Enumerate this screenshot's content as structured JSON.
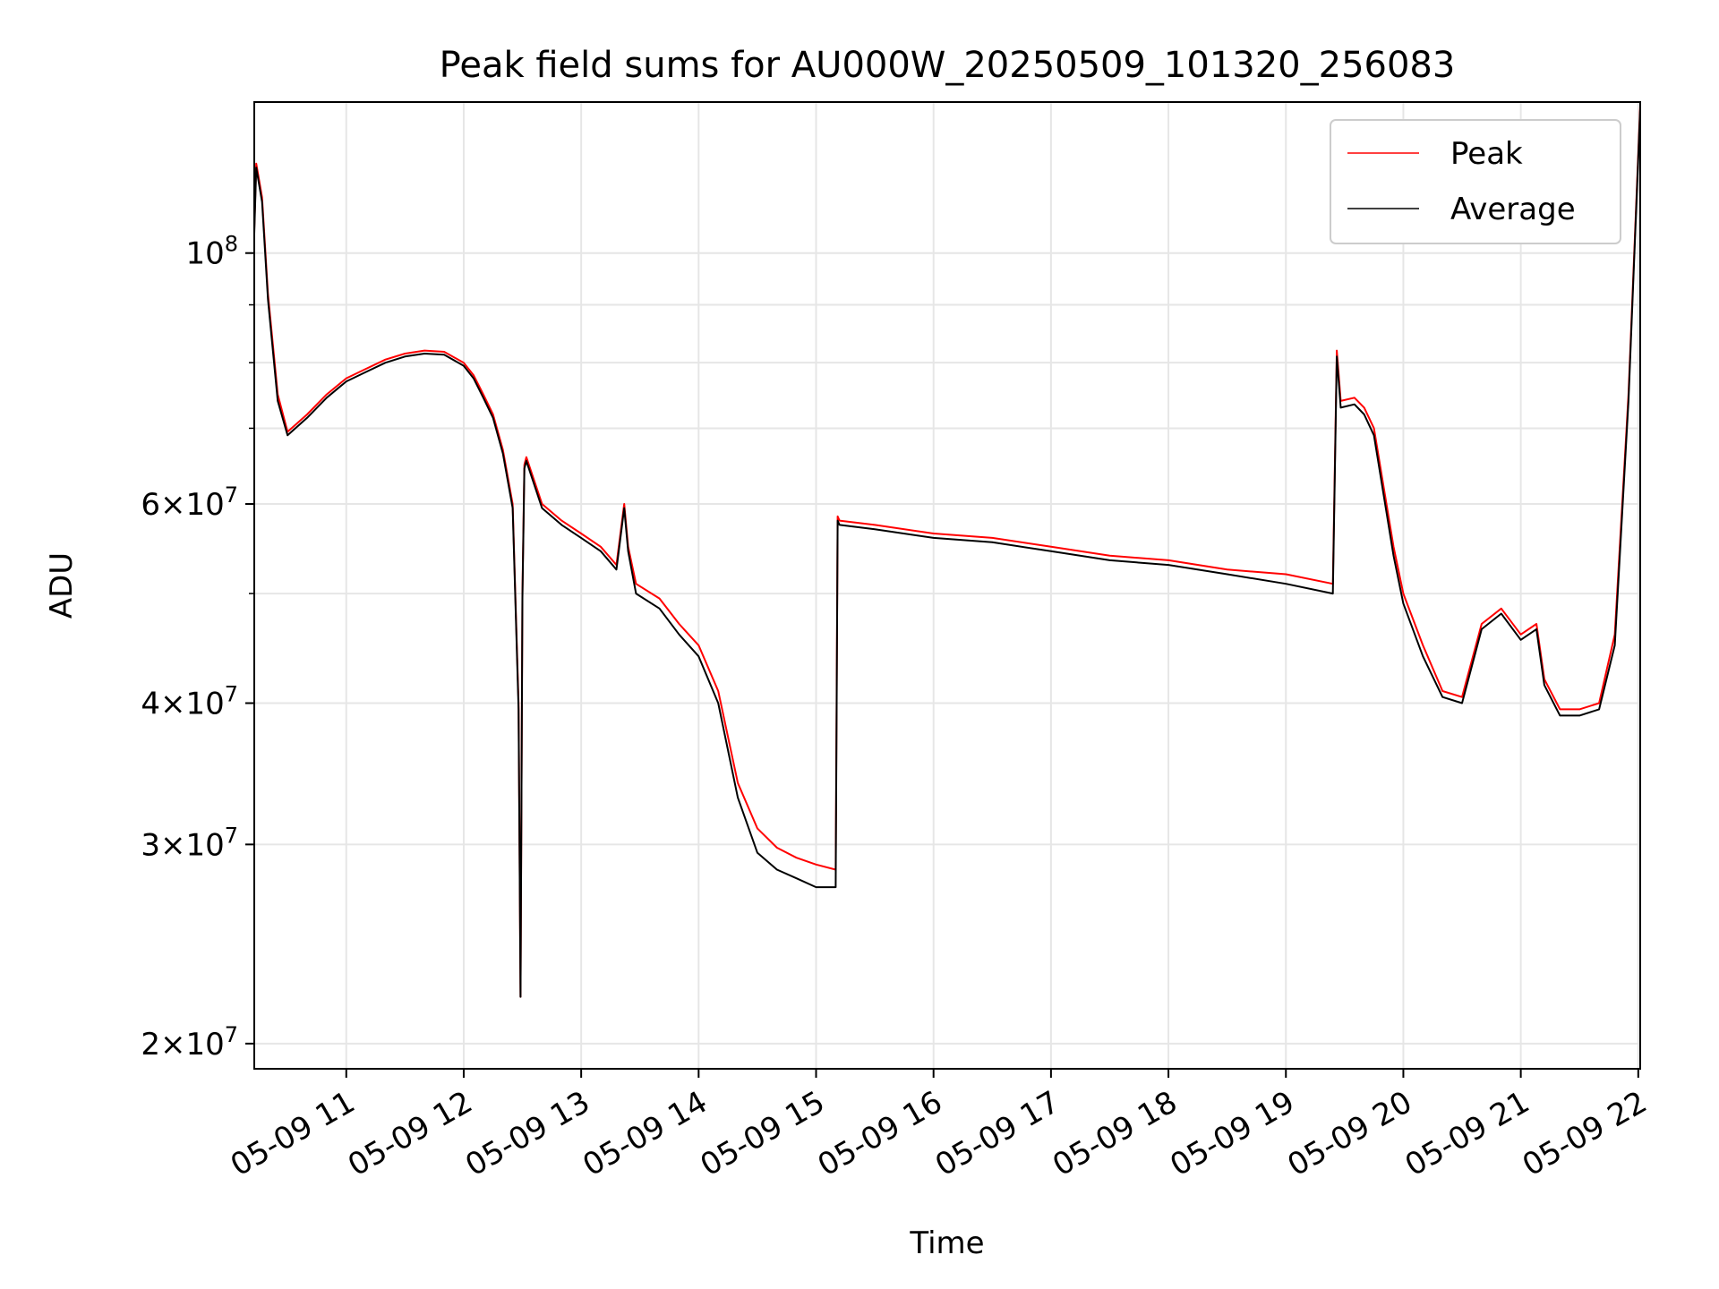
{
  "chart_data": {
    "type": "line",
    "title": "Peak field sums for AU000W_20250509_101320_256083",
    "xlabel": "Time",
    "ylabel": "ADU",
    "yscale": "log",
    "xlim": [
      "2025-05-09 10:13",
      "2025-05-09 22:01"
    ],
    "ylim": [
      19000000,
      136000000
    ],
    "grid": true,
    "legend_position": "upper right",
    "x_ticks": [
      {
        "t": "2025-05-09 11:00",
        "label": "05-09 11"
      },
      {
        "t": "2025-05-09 12:00",
        "label": "05-09 12"
      },
      {
        "t": "2025-05-09 13:00",
        "label": "05-09 13"
      },
      {
        "t": "2025-05-09 14:00",
        "label": "05-09 14"
      },
      {
        "t": "2025-05-09 15:00",
        "label": "05-09 15"
      },
      {
        "t": "2025-05-09 16:00",
        "label": "05-09 16"
      },
      {
        "t": "2025-05-09 17:00",
        "label": "05-09 17"
      },
      {
        "t": "2025-05-09 18:00",
        "label": "05-09 18"
      },
      {
        "t": "2025-05-09 19:00",
        "label": "05-09 19"
      },
      {
        "t": "2025-05-09 20:00",
        "label": "05-09 20"
      },
      {
        "t": "2025-05-09 21:00",
        "label": "05-09 21"
      },
      {
        "t": "2025-05-09 22:00",
        "label": "05-09 22"
      }
    ],
    "y_major_ticks": [
      {
        "value": 20000000,
        "mantissa": "2",
        "exponent": "7"
      },
      {
        "value": 30000000,
        "mantissa": "3",
        "exponent": "7"
      },
      {
        "value": 40000000,
        "mantissa": "4",
        "exponent": "7"
      },
      {
        "value": 60000000,
        "mantissa": "6",
        "exponent": "7"
      },
      {
        "value": 100000000,
        "mantissa": "",
        "exponent": "8"
      }
    ],
    "y_minor_ticks": [
      50000000,
      70000000,
      80000000,
      90000000
    ],
    "series": [
      {
        "name": "Peak",
        "color": "#ff0000",
        "x": [
          "2025-05-09 10:13",
          "2025-05-09 10:14",
          "2025-05-09 10:17",
          "2025-05-09 10:20",
          "2025-05-09 10:25",
          "2025-05-09 10:30",
          "2025-05-09 10:40",
          "2025-05-09 10:50",
          "2025-05-09 11:00",
          "2025-05-09 11:10",
          "2025-05-09 11:20",
          "2025-05-09 11:30",
          "2025-05-09 11:40",
          "2025-05-09 11:50",
          "2025-05-09 12:00",
          "2025-05-09 12:05",
          "2025-05-09 12:10",
          "2025-05-09 12:15",
          "2025-05-09 12:20",
          "2025-05-09 12:25",
          "2025-05-09 12:28",
          "2025-05-09 12:29",
          "2025-05-09 12:30",
          "2025-05-09 12:31",
          "2025-05-09 12:32",
          "2025-05-09 12:40",
          "2025-05-09 12:50",
          "2025-05-09 13:00",
          "2025-05-09 13:10",
          "2025-05-09 13:18",
          "2025-05-09 13:22",
          "2025-05-09 13:24",
          "2025-05-09 13:28",
          "2025-05-09 13:40",
          "2025-05-09 13:50",
          "2025-05-09 14:00",
          "2025-05-09 14:10",
          "2025-05-09 14:20",
          "2025-05-09 14:30",
          "2025-05-09 14:40",
          "2025-05-09 14:50",
          "2025-05-09 15:00",
          "2025-05-09 15:10",
          "2025-05-09 15:11",
          "2025-05-09 15:12",
          "2025-05-09 15:30",
          "2025-05-09 16:00",
          "2025-05-09 16:30",
          "2025-05-09 17:00",
          "2025-05-09 17:30",
          "2025-05-09 18:00",
          "2025-05-09 18:30",
          "2025-05-09 19:00",
          "2025-05-09 19:24",
          "2025-05-09 19:26",
          "2025-05-09 19:28",
          "2025-05-09 19:35",
          "2025-05-09 19:40",
          "2025-05-09 19:45",
          "2025-05-09 19:50",
          "2025-05-09 19:55",
          "2025-05-09 20:00",
          "2025-05-09 20:10",
          "2025-05-09 20:20",
          "2025-05-09 20:30",
          "2025-05-09 20:40",
          "2025-05-09 20:50",
          "2025-05-09 21:00",
          "2025-05-09 21:08",
          "2025-05-09 21:12",
          "2025-05-09 21:20",
          "2025-05-09 21:30",
          "2025-05-09 21:40",
          "2025-05-09 21:48",
          "2025-05-09 21:55",
          "2025-05-09 22:01"
        ],
        "y": [
          105000000,
          120000000,
          112000000,
          92000000,
          75000000,
          69500000,
          72000000,
          75000000,
          77500000,
          79000000,
          80500000,
          81500000,
          82000000,
          81800000,
          80000000,
          78000000,
          75000000,
          72000000,
          67000000,
          60000000,
          40000000,
          22000000,
          50000000,
          65000000,
          66000000,
          60000000,
          58000000,
          56500000,
          55000000,
          53000000,
          60000000,
          55000000,
          51000000,
          49500000,
          47000000,
          45000000,
          41000000,
          34000000,
          31000000,
          29800000,
          29200000,
          28800000,
          28500000,
          58500000,
          58000000,
          57500000,
          56500000,
          56000000,
          55000000,
          54000000,
          53500000,
          52500000,
          52000000,
          51000000,
          82000000,
          74000000,
          74500000,
          73000000,
          70000000,
          62000000,
          55000000,
          50000000,
          45000000,
          41000000,
          40500000,
          47000000,
          48500000,
          46000000,
          47000000,
          42000000,
          39500000,
          39500000,
          40000000,
          46000000,
          75000000,
          135000000
        ]
      },
      {
        "name": "Average",
        "color": "#000000",
        "x": [
          "2025-05-09 10:13",
          "2025-05-09 10:14",
          "2025-05-09 10:17",
          "2025-05-09 10:20",
          "2025-05-09 10:25",
          "2025-05-09 10:30",
          "2025-05-09 10:40",
          "2025-05-09 10:50",
          "2025-05-09 11:00",
          "2025-05-09 11:10",
          "2025-05-09 11:20",
          "2025-05-09 11:30",
          "2025-05-09 11:40",
          "2025-05-09 11:50",
          "2025-05-09 12:00",
          "2025-05-09 12:05",
          "2025-05-09 12:10",
          "2025-05-09 12:15",
          "2025-05-09 12:20",
          "2025-05-09 12:25",
          "2025-05-09 12:28",
          "2025-05-09 12:29",
          "2025-05-09 12:30",
          "2025-05-09 12:31",
          "2025-05-09 12:32",
          "2025-05-09 12:40",
          "2025-05-09 12:50",
          "2025-05-09 13:00",
          "2025-05-09 13:10",
          "2025-05-09 13:18",
          "2025-05-09 13:22",
          "2025-05-09 13:24",
          "2025-05-09 13:28",
          "2025-05-09 13:40",
          "2025-05-09 13:50",
          "2025-05-09 14:00",
          "2025-05-09 14:10",
          "2025-05-09 14:20",
          "2025-05-09 14:30",
          "2025-05-09 14:40",
          "2025-05-09 14:50",
          "2025-05-09 15:00",
          "2025-05-09 15:10",
          "2025-05-09 15:11",
          "2025-05-09 15:12",
          "2025-05-09 15:30",
          "2025-05-09 16:00",
          "2025-05-09 16:30",
          "2025-05-09 17:00",
          "2025-05-09 17:30",
          "2025-05-09 18:00",
          "2025-05-09 18:30",
          "2025-05-09 19:00",
          "2025-05-09 19:24",
          "2025-05-09 19:26",
          "2025-05-09 19:28",
          "2025-05-09 19:35",
          "2025-05-09 19:40",
          "2025-05-09 19:45",
          "2025-05-09 19:50",
          "2025-05-09 19:55",
          "2025-05-09 20:00",
          "2025-05-09 20:10",
          "2025-05-09 20:20",
          "2025-05-09 20:30",
          "2025-05-09 20:40",
          "2025-05-09 20:50",
          "2025-05-09 21:00",
          "2025-05-09 21:08",
          "2025-05-09 21:12",
          "2025-05-09 21:20",
          "2025-05-09 21:30",
          "2025-05-09 21:40",
          "2025-05-09 21:48",
          "2025-05-09 21:55",
          "2025-05-09 22:01"
        ],
        "y": [
          104000000,
          119000000,
          111000000,
          91000000,
          74000000,
          69000000,
          71500000,
          74500000,
          77000000,
          78500000,
          80000000,
          81000000,
          81500000,
          81300000,
          79500000,
          77500000,
          74500000,
          71500000,
          66500000,
          59500000,
          39500000,
          22000000,
          49500000,
          64500000,
          65500000,
          59500000,
          57500000,
          56000000,
          54500000,
          52500000,
          59500000,
          54500000,
          50000000,
          48500000,
          46000000,
          44000000,
          40000000,
          33000000,
          29500000,
          28500000,
          28000000,
          27500000,
          27500000,
          58000000,
          57500000,
          57000000,
          56000000,
          55500000,
          54500000,
          53500000,
          53000000,
          52000000,
          51000000,
          50000000,
          81000000,
          73000000,
          73500000,
          72000000,
          69000000,
          61000000,
          54000000,
          49000000,
          44000000,
          40500000,
          40000000,
          46500000,
          48000000,
          45500000,
          46500000,
          41500000,
          39000000,
          39000000,
          39500000,
          45000000,
          74000000,
          134000000
        ]
      }
    ]
  }
}
